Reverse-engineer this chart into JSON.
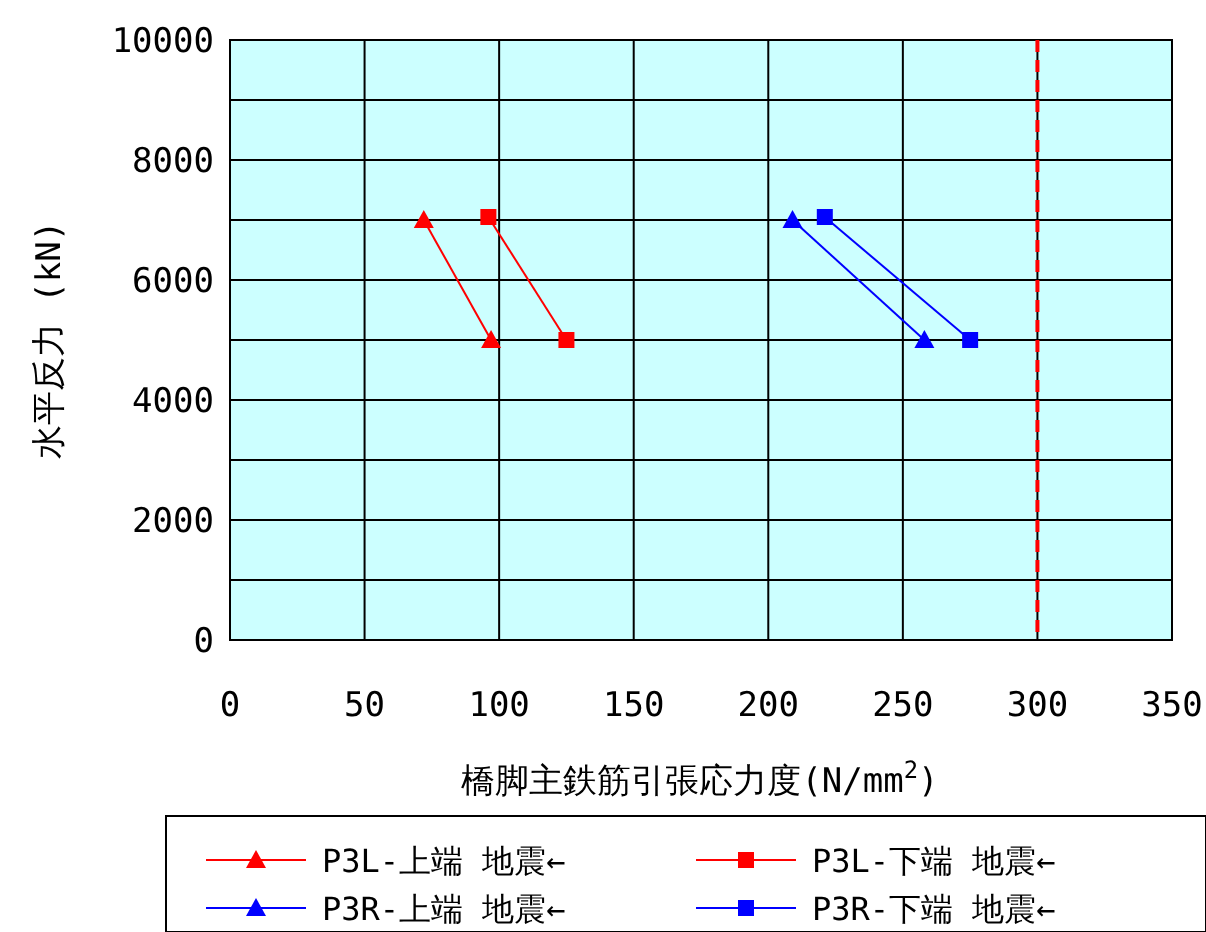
{
  "chart_data": {
    "type": "line",
    "xlabel": "橋脚主鉄筋引張応力度(N/mm$^{2}$)",
    "ylabel": "水平反力 (kN)",
    "xlim": [
      0,
      350
    ],
    "xticks": [
      0,
      50,
      100,
      150,
      200,
      250,
      300,
      350
    ],
    "ylim": [
      0,
      10000
    ],
    "yticks": [
      0,
      {
        "value": 1000,
        "label": null
      },
      2000,
      {
        "value": 3000,
        "label": null
      },
      4000,
      {
        "value": 5000,
        "label": null
      },
      6000,
      {
        "value": 7000,
        "label": null
      },
      8000,
      {
        "value": 9000,
        "label": null
      },
      10000
    ],
    "grid": true,
    "legend": "bottom",
    "series": [
      {
        "name": "P3L-上端 地震←",
        "color": "#ff0000",
        "marker": "triangle",
        "x": [
          72,
          97
        ],
        "values": [
          7000,
          5000
        ]
      },
      {
        "name": "P3L-下端 地震←",
        "color": "#ff0000",
        "marker": "square",
        "x": [
          96,
          125
        ],
        "values": [
          7050,
          5000
        ]
      },
      {
        "name": "P3R-上端 地震←",
        "color": "#0000ff",
        "marker": "triangle",
        "x": [
          209,
          258
        ],
        "values": [
          7000,
          5000
        ]
      },
      {
        "name": "P3R-下端 地震←",
        "color": "#0000ff",
        "marker": "square",
        "x": [
          221,
          275
        ],
        "values": [
          7050,
          5000
        ]
      }
    ],
    "ref_lines": [
      {
        "axis": "x",
        "value": 300,
        "color": "#ff0000",
        "line_style": "dashed"
      }
    ]
  }
}
